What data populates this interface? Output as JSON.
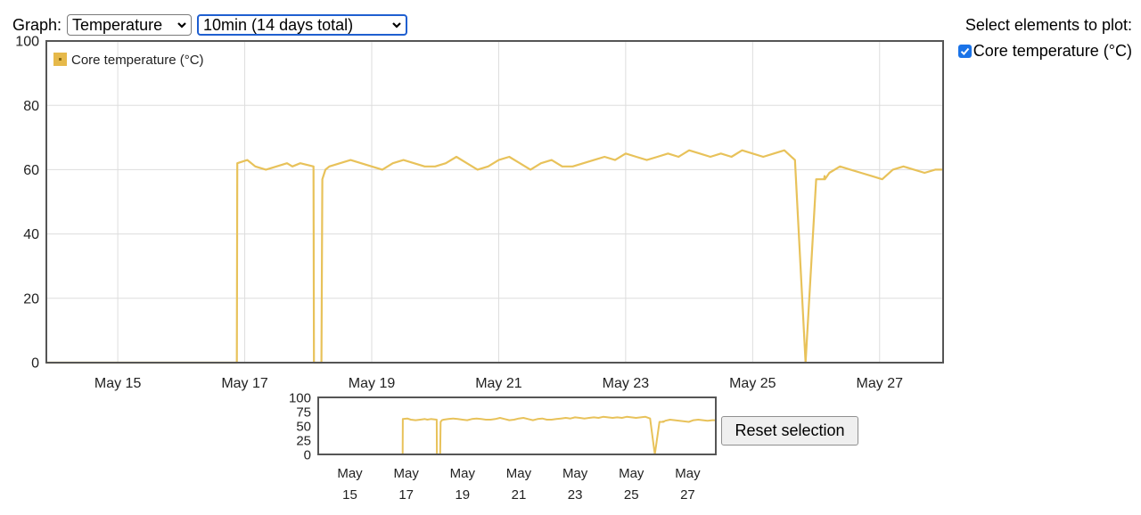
{
  "controls": {
    "graph_label": "Graph:",
    "graph_select_value": "Temperature",
    "range_select_value": "10min (14 days total)"
  },
  "plot_selection": {
    "title": "Select elements to plot:",
    "items": [
      {
        "label": "Core temperature (°C)",
        "checked": true
      }
    ]
  },
  "reset_button_label": "Reset selection",
  "colors": {
    "series": "#e8c25a",
    "legend_swatch": "#e6b94a",
    "grid": "#dddddd",
    "frame": "#555555",
    "focus": "#1f5fd0"
  },
  "icons": {
    "select_arrow": "chevron-down-icon",
    "checkbox": "checkmark-icon"
  },
  "chart_data": [
    {
      "type": "line",
      "legend": [
        "Core temperature (°C)"
      ],
      "legend_position": "top-left",
      "grid": true,
      "ylim": [
        0,
        100
      ],
      "y_ticks": [
        "0",
        "20",
        "40",
        "60",
        "80",
        "100"
      ],
      "x_ticks": [
        "May 15",
        "May 17",
        "May 19",
        "May 21",
        "May 23",
        "May 25",
        "May 27"
      ],
      "xlim": [
        "2025-05-13T21:00",
        "2025-05-28T00:00"
      ],
      "series": [
        {
          "name": "Core temperature (°C)",
          "x": [
            "2025-05-13T21:00",
            "2025-05-16T21:00",
            "2025-05-16T21:10",
            "2025-05-17T01:00",
            "2025-05-17T04:00",
            "2025-05-17T08:00",
            "2025-05-17T12:00",
            "2025-05-17T16:00",
            "2025-05-17T18:00",
            "2025-05-17T21:00",
            "2025-05-18T02:00",
            "2025-05-18T02:10",
            "2025-05-18T05:00",
            "2025-05-18T05:20",
            "2025-05-18T06:30",
            "2025-05-18T08:00",
            "2025-05-18T12:00",
            "2025-05-18T16:00",
            "2025-05-18T20:00",
            "2025-05-19T00:00",
            "2025-05-19T04:00",
            "2025-05-19T08:00",
            "2025-05-19T12:00",
            "2025-05-19T16:00",
            "2025-05-19T20:00",
            "2025-05-20T00:00",
            "2025-05-20T04:00",
            "2025-05-20T08:00",
            "2025-05-20T12:00",
            "2025-05-20T16:00",
            "2025-05-20T20:00",
            "2025-05-21T00:00",
            "2025-05-21T04:00",
            "2025-05-21T08:00",
            "2025-05-21T12:00",
            "2025-05-21T16:00",
            "2025-05-21T20:00",
            "2025-05-22T00:00",
            "2025-05-22T04:00",
            "2025-05-22T08:00",
            "2025-05-22T12:00",
            "2025-05-22T16:00",
            "2025-05-22T20:00",
            "2025-05-23T00:00",
            "2025-05-23T04:00",
            "2025-05-23T08:00",
            "2025-05-23T12:00",
            "2025-05-23T16:00",
            "2025-05-23T20:00",
            "2025-05-24T00:00",
            "2025-05-24T04:00",
            "2025-05-24T08:00",
            "2025-05-24T12:00",
            "2025-05-24T16:00",
            "2025-05-24T20:00",
            "2025-05-25T00:00",
            "2025-05-25T04:00",
            "2025-05-25T08:00",
            "2025-05-25T12:00",
            "2025-05-25T16:00",
            "2025-05-25T20:00",
            "2025-05-26T00:00",
            "2025-05-26T03:00",
            "2025-05-26T03:10",
            "2025-05-26T03:20",
            "2025-05-26T05:00",
            "2025-05-26T09:00",
            "2025-05-26T13:00",
            "2025-05-26T17:00",
            "2025-05-26T21:00",
            "2025-05-27T01:00",
            "2025-05-27T05:00",
            "2025-05-27T09:00",
            "2025-05-27T13:00",
            "2025-05-27T17:00",
            "2025-05-27T21:00",
            "2025-05-28T00:00"
          ],
          "y": [
            0,
            0,
            62,
            63,
            61,
            60,
            61,
            62,
            61,
            62,
            61,
            0,
            0,
            57,
            60,
            61,
            62,
            63,
            62,
            61,
            60,
            62,
            63,
            62,
            61,
            61,
            62,
            64,
            62,
            60,
            61,
            63,
            64,
            62,
            60,
            62,
            63,
            61,
            61,
            62,
            63,
            64,
            63,
            65,
            64,
            63,
            64,
            65,
            64,
            66,
            65,
            64,
            65,
            64,
            66,
            65,
            64,
            65,
            66,
            63,
            0,
            57,
            57,
            58,
            57,
            59,
            61,
            60,
            59,
            58,
            57,
            60,
            61,
            60,
            59,
            60,
            60
          ]
        }
      ]
    },
    {
      "type": "line",
      "title": "",
      "grid": false,
      "ylim": [
        0,
        100
      ],
      "y_ticks": [
        "0",
        "25",
        "50",
        "75",
        "100"
      ],
      "x_ticks_line1": [
        "May",
        "May",
        "May",
        "May",
        "May",
        "May",
        "May"
      ],
      "x_ticks_line2": [
        "15",
        "17",
        "19",
        "21",
        "23",
        "25",
        "27"
      ],
      "xlim": [
        "2025-05-13T21:00",
        "2025-05-28T00:00"
      ],
      "same_series_as": "Core temperature (°C)"
    }
  ]
}
